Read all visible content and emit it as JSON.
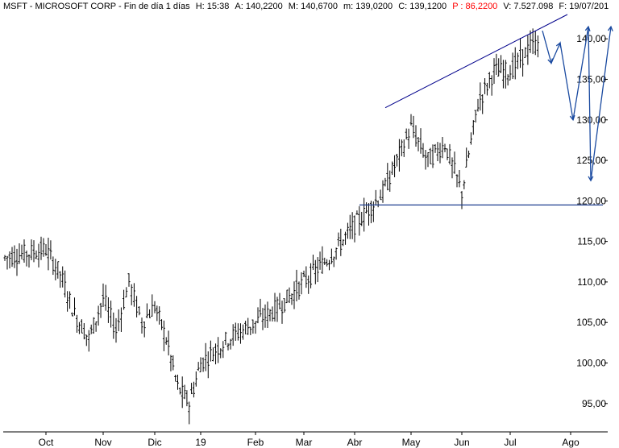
{
  "header": {
    "symbol": "MSFT - MICROSOFT CORP - Fin de día 1 días",
    "high": "H: 15:38",
    "h_label": "A: 140,2200",
    "m_label": "M: 140,6700",
    "min_label": "m: 139,0200",
    "close_label": "C: 139,1200",
    "p_label": "P : 86,2200",
    "volume_label": "V: 7.527.098",
    "date_label": "F: 19/07/201"
  },
  "chart_data": {
    "type": "candlestick",
    "title": "MSFT - MICROSOFT CORP - Fin de día 1 días",
    "y_ticks": [
      "140,00",
      "135,00",
      "130,00",
      "125,00",
      "120,00",
      "115,00",
      "110,00",
      "105,00",
      "100,00",
      "95,00"
    ],
    "y_tick_values": [
      140,
      135,
      130,
      125,
      120,
      115,
      110,
      105,
      100,
      95
    ],
    "ylim": [
      91.5,
      143
    ],
    "x_ticks": [
      "Oct",
      "Nov",
      "Dic",
      "19",
      "Feb",
      "Mar",
      "Abr",
      "May",
      "Jun",
      "Jul",
      "Ago"
    ],
    "grid": false,
    "colors": {
      "price": "#000000",
      "trendline": "#00008b",
      "support": "#1f3f8f",
      "projection": "#1a4aa0"
    },
    "support_level": 119.5,
    "upper_trend_start": {
      "month": "May",
      "value": 131.5
    },
    "upper_trend_end": {
      "month": "Ago",
      "value": 143
    },
    "projection": [
      {
        "month": "Jul",
        "value": 141
      },
      {
        "month": "Jul",
        "value": 137
      },
      {
        "month": "Ago",
        "value": 139.5
      },
      {
        "month": "Ago",
        "value": 130
      },
      {
        "month": "Ago",
        "value": 141.5
      },
      {
        "month": "Ago",
        "value": 122.5
      },
      {
        "month": "Ago",
        "value": 141.5
      }
    ],
    "series": [
      {
        "month_points": [
          {
            "m": "Oct",
            "v": 114
          },
          {
            "m": "Oct",
            "v": 111
          },
          {
            "m": "Oct",
            "v": 106
          },
          {
            "m": "Oct",
            "v": 103
          },
          {
            "m": "Nov",
            "v": 108
          },
          {
            "m": "Nov",
            "v": 104
          },
          {
            "m": "Nov",
            "v": 110
          },
          {
            "m": "Nov",
            "v": 105
          },
          {
            "m": "Dic",
            "v": 107
          },
          {
            "m": "Dic",
            "v": 103
          },
          {
            "m": "Dic",
            "v": 97
          },
          {
            "m": "Dic",
            "v": 95
          },
          {
            "m": "19",
            "v": 100
          },
          {
            "m": "19",
            "v": 103
          },
          {
            "m": "Feb",
            "v": 105
          },
          {
            "m": "Feb",
            "v": 107
          },
          {
            "m": "Mar",
            "v": 110
          },
          {
            "m": "Mar",
            "v": 113
          },
          {
            "m": "Abr",
            "v": 117
          },
          {
            "m": "Abr",
            "v": 121
          },
          {
            "m": "May",
            "v": 129
          },
          {
            "m": "May",
            "v": 125
          },
          {
            "m": "May",
            "v": 127
          },
          {
            "m": "Jun",
            "v": 121
          },
          {
            "m": "Jun",
            "v": 132
          },
          {
            "m": "Jun",
            "v": 136
          },
          {
            "m": "Jul",
            "v": 136
          },
          {
            "m": "Jul",
            "v": 139
          },
          {
            "m": "Jul",
            "v": 140
          }
        ]
      }
    ]
  }
}
